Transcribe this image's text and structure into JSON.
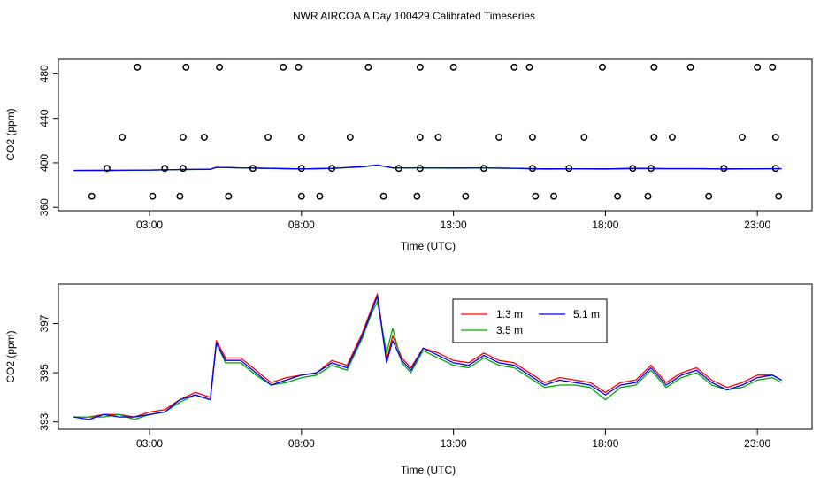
{
  "title": "NWR AIRCOA A  Day 100429  Calibrated Timeseries",
  "chart_data": [
    {
      "type": "scatter",
      "name": "top",
      "xlabel": "Time (UTC)",
      "ylabel": "CO2 (ppm)",
      "xlim": [
        0.0,
        24.8
      ],
      "ylim": [
        357,
        493
      ],
      "xticks": [
        3,
        8,
        13,
        18,
        23
      ],
      "xticklabels": [
        "03:00",
        "08:00",
        "13:00",
        "18:00",
        "23:00"
      ],
      "yticks": [
        360,
        400,
        440,
        480
      ],
      "yticklabels": [
        "360",
        "400",
        "440",
        "480"
      ],
      "points": [
        [
          1.1,
          370
        ],
        [
          1.6,
          395
        ],
        [
          2.1,
          423
        ],
        [
          2.6,
          486
        ],
        [
          3.1,
          370
        ],
        [
          3.5,
          395
        ],
        [
          4.0,
          370
        ],
        [
          4.1,
          395
        ],
        [
          4.1,
          423
        ],
        [
          4.2,
          486
        ],
        [
          4.8,
          423
        ],
        [
          5.3,
          486
        ],
        [
          5.6,
          370
        ],
        [
          6.4,
          395
        ],
        [
          6.9,
          423
        ],
        [
          7.4,
          486
        ],
        [
          7.9,
          486
        ],
        [
          8.0,
          423
        ],
        [
          8.0,
          395
        ],
        [
          8.0,
          370
        ],
        [
          8.6,
          370
        ],
        [
          9.0,
          395
        ],
        [
          9.6,
          423
        ],
        [
          10.2,
          486
        ],
        [
          10.7,
          370
        ],
        [
          11.2,
          395
        ],
        [
          11.8,
          370
        ],
        [
          11.9,
          395
        ],
        [
          11.9,
          423
        ],
        [
          11.9,
          486
        ],
        [
          12.5,
          423
        ],
        [
          13.0,
          486
        ],
        [
          13.4,
          370
        ],
        [
          14.0,
          395
        ],
        [
          14.5,
          423
        ],
        [
          15.0,
          486
        ],
        [
          15.5,
          486
        ],
        [
          15.6,
          423
        ],
        [
          15.6,
          395
        ],
        [
          15.7,
          370
        ],
        [
          16.3,
          370
        ],
        [
          16.8,
          395
        ],
        [
          17.3,
          423
        ],
        [
          17.9,
          486
        ],
        [
          18.4,
          370
        ],
        [
          18.9,
          395
        ],
        [
          19.4,
          370
        ],
        [
          19.5,
          395
        ],
        [
          19.6,
          423
        ],
        [
          19.6,
          486
        ],
        [
          20.2,
          423
        ],
        [
          20.8,
          486
        ],
        [
          21.4,
          370
        ],
        [
          21.9,
          395
        ],
        [
          22.5,
          423
        ],
        [
          23.0,
          486
        ],
        [
          23.5,
          486
        ],
        [
          23.6,
          423
        ],
        [
          23.6,
          395
        ],
        [
          23.7,
          370
        ]
      ],
      "series": [
        {
          "name": "1.3 m",
          "color": "#ff0000",
          "x": [
            0.5,
            2,
            3,
            4,
            5,
            5.2,
            6,
            7,
            8,
            9,
            10,
            10.5,
            11,
            12,
            13,
            14,
            15,
            16,
            17,
            18,
            19,
            20,
            21,
            22,
            23,
            23.8
          ],
          "y": [
            393.2,
            393.3,
            393.5,
            394,
            394.2,
            396,
            395.5,
            395,
            394.5,
            395,
            396.5,
            398,
            395.5,
            395.5,
            395.3,
            395.5,
            395.1,
            394.5,
            394.7,
            394.5,
            395,
            394.8,
            394.8,
            394.5,
            394.7,
            394.8
          ]
        },
        {
          "name": "3.5 m",
          "color": "#00aa00",
          "x": [
            0.5,
            2,
            3,
            4,
            5,
            5.2,
            6,
            7,
            8,
            9,
            10,
            10.5,
            11,
            12,
            13,
            14,
            15,
            16,
            17,
            18,
            19,
            20,
            21,
            22,
            23,
            23.8
          ],
          "y": [
            393.1,
            393.2,
            393.4,
            393.9,
            394.1,
            395.9,
            395.4,
            394.9,
            394.4,
            394.9,
            396.3,
            397.8,
            395.4,
            395.3,
            395.2,
            395.3,
            395,
            394.3,
            394.5,
            394.3,
            394.8,
            394.6,
            394.6,
            394.3,
            394.5,
            394.6
          ]
        },
        {
          "name": "5.1 m",
          "color": "#0000ff",
          "x": [
            0.5,
            2,
            3,
            4,
            5,
            5.2,
            6,
            7,
            8,
            9,
            10,
            10.5,
            11,
            12,
            13,
            14,
            15,
            16,
            17,
            18,
            19,
            20,
            21,
            22,
            23,
            23.8
          ],
          "y": [
            393.2,
            393.3,
            393.5,
            394,
            394.2,
            396,
            395.5,
            395,
            394.5,
            395,
            396.5,
            398,
            395.5,
            395.5,
            395.3,
            395.5,
            395.1,
            394.5,
            394.7,
            394.5,
            395,
            394.8,
            394.8,
            394.5,
            394.7,
            394.8
          ]
        }
      ]
    },
    {
      "type": "line",
      "name": "bottom",
      "xlabel": "Time (UTC)",
      "ylabel": "CO2 (ppm)",
      "xlim": [
        0.0,
        24.8
      ],
      "ylim": [
        392.7,
        398.6
      ],
      "xticks": [
        3,
        8,
        13,
        18,
        23
      ],
      "xticklabels": [
        "03:00",
        "08:00",
        "13:00",
        "18:00",
        "23:00"
      ],
      "yticks": [
        393,
        395,
        397
      ],
      "yticklabels": [
        "393",
        "395",
        "397"
      ],
      "legend": {
        "position": "top-center",
        "entries": [
          "1.3 m",
          "5.1 m",
          "3.5 m"
        ]
      },
      "series": [
        {
          "name": "1.3 m",
          "color": "#ff0000",
          "x": [
            0.5,
            1,
            1.5,
            2,
            2.5,
            3,
            3.5,
            4,
            4.5,
            5,
            5.2,
            5.5,
            6,
            6.5,
            7,
            7.5,
            8,
            8.5,
            9,
            9.5,
            10,
            10.3,
            10.5,
            10.8,
            11,
            11.3,
            11.6,
            12,
            12.5,
            13,
            13.5,
            14,
            14.5,
            15,
            15.5,
            16,
            16.5,
            17,
            17.5,
            18,
            18.5,
            19,
            19.5,
            20,
            20.5,
            21,
            21.5,
            22,
            22.5,
            23,
            23.5,
            23.8
          ],
          "y": [
            393.2,
            393.2,
            393.3,
            393.3,
            393.2,
            393.4,
            393.5,
            393.9,
            394.2,
            394,
            396.3,
            395.6,
            395.6,
            395.1,
            394.6,
            394.8,
            394.9,
            395,
            395.5,
            395.3,
            396.6,
            397.6,
            398.2,
            395.5,
            396.5,
            395.6,
            395.2,
            396,
            395.8,
            395.5,
            395.4,
            395.8,
            395.5,
            395.4,
            395,
            394.6,
            394.8,
            394.7,
            394.6,
            394.2,
            394.6,
            394.7,
            395.3,
            394.6,
            395,
            395.2,
            394.7,
            394.4,
            394.6,
            394.9,
            394.9,
            394.7
          ]
        },
        {
          "name": "3.5 m",
          "color": "#00aa00",
          "x": [
            0.5,
            1,
            1.5,
            2,
            2.5,
            3,
            3.5,
            4,
            4.5,
            5,
            5.2,
            5.5,
            6,
            6.5,
            7,
            7.5,
            8,
            8.5,
            9,
            9.5,
            10,
            10.3,
            10.5,
            10.8,
            11,
            11.3,
            11.6,
            12,
            12.5,
            13,
            13.5,
            14,
            14.5,
            15,
            15.5,
            16,
            16.5,
            17,
            17.5,
            18,
            18.5,
            19,
            19.5,
            20,
            20.5,
            21,
            21.5,
            22,
            22.5,
            23,
            23.5,
            23.8
          ],
          "y": [
            393.2,
            393.2,
            393.2,
            393.3,
            393.1,
            393.3,
            393.4,
            393.8,
            394.1,
            393.9,
            396.2,
            395.4,
            395.4,
            394.9,
            394.5,
            394.6,
            394.8,
            394.9,
            395.3,
            395.1,
            396.4,
            397.4,
            397.9,
            395.8,
            396.8,
            395.4,
            395,
            395.9,
            395.6,
            395.3,
            395.2,
            395.6,
            395.3,
            395.2,
            394.8,
            394.4,
            394.5,
            394.5,
            394.4,
            393.9,
            394.4,
            394.5,
            395.1,
            394.4,
            394.8,
            395,
            394.5,
            394.3,
            394.4,
            394.7,
            394.8,
            394.6
          ]
        },
        {
          "name": "5.1 m",
          "color": "#0000ff",
          "x": [
            0.5,
            1,
            1.5,
            2,
            2.5,
            3,
            3.5,
            4,
            4.5,
            5,
            5.2,
            5.5,
            6,
            6.5,
            7,
            7.5,
            8,
            8.5,
            9,
            9.5,
            10,
            10.3,
            10.5,
            10.8,
            11,
            11.3,
            11.6,
            12,
            12.5,
            13,
            13.5,
            14,
            14.5,
            15,
            15.5,
            16,
            16.5,
            17,
            17.5,
            18,
            18.5,
            19,
            19.5,
            20,
            20.5,
            21,
            21.5,
            22,
            22.5,
            23,
            23.5,
            23.8
          ],
          "y": [
            393.2,
            393.1,
            393.3,
            393.2,
            393.2,
            393.3,
            393.4,
            393.9,
            394.1,
            393.9,
            396.2,
            395.5,
            395.5,
            395,
            394.5,
            394.7,
            394.9,
            395,
            395.4,
            395.2,
            396.5,
            397.5,
            398.1,
            395.4,
            396.3,
            395.5,
            395.1,
            396,
            395.7,
            395.4,
            395.3,
            395.7,
            395.4,
            395.3,
            394.9,
            394.5,
            394.7,
            394.6,
            394.5,
            394.1,
            394.5,
            394.6,
            395.2,
            394.5,
            394.9,
            395.1,
            394.6,
            394.3,
            394.5,
            394.8,
            394.9,
            394.7
          ]
        }
      ]
    }
  ]
}
